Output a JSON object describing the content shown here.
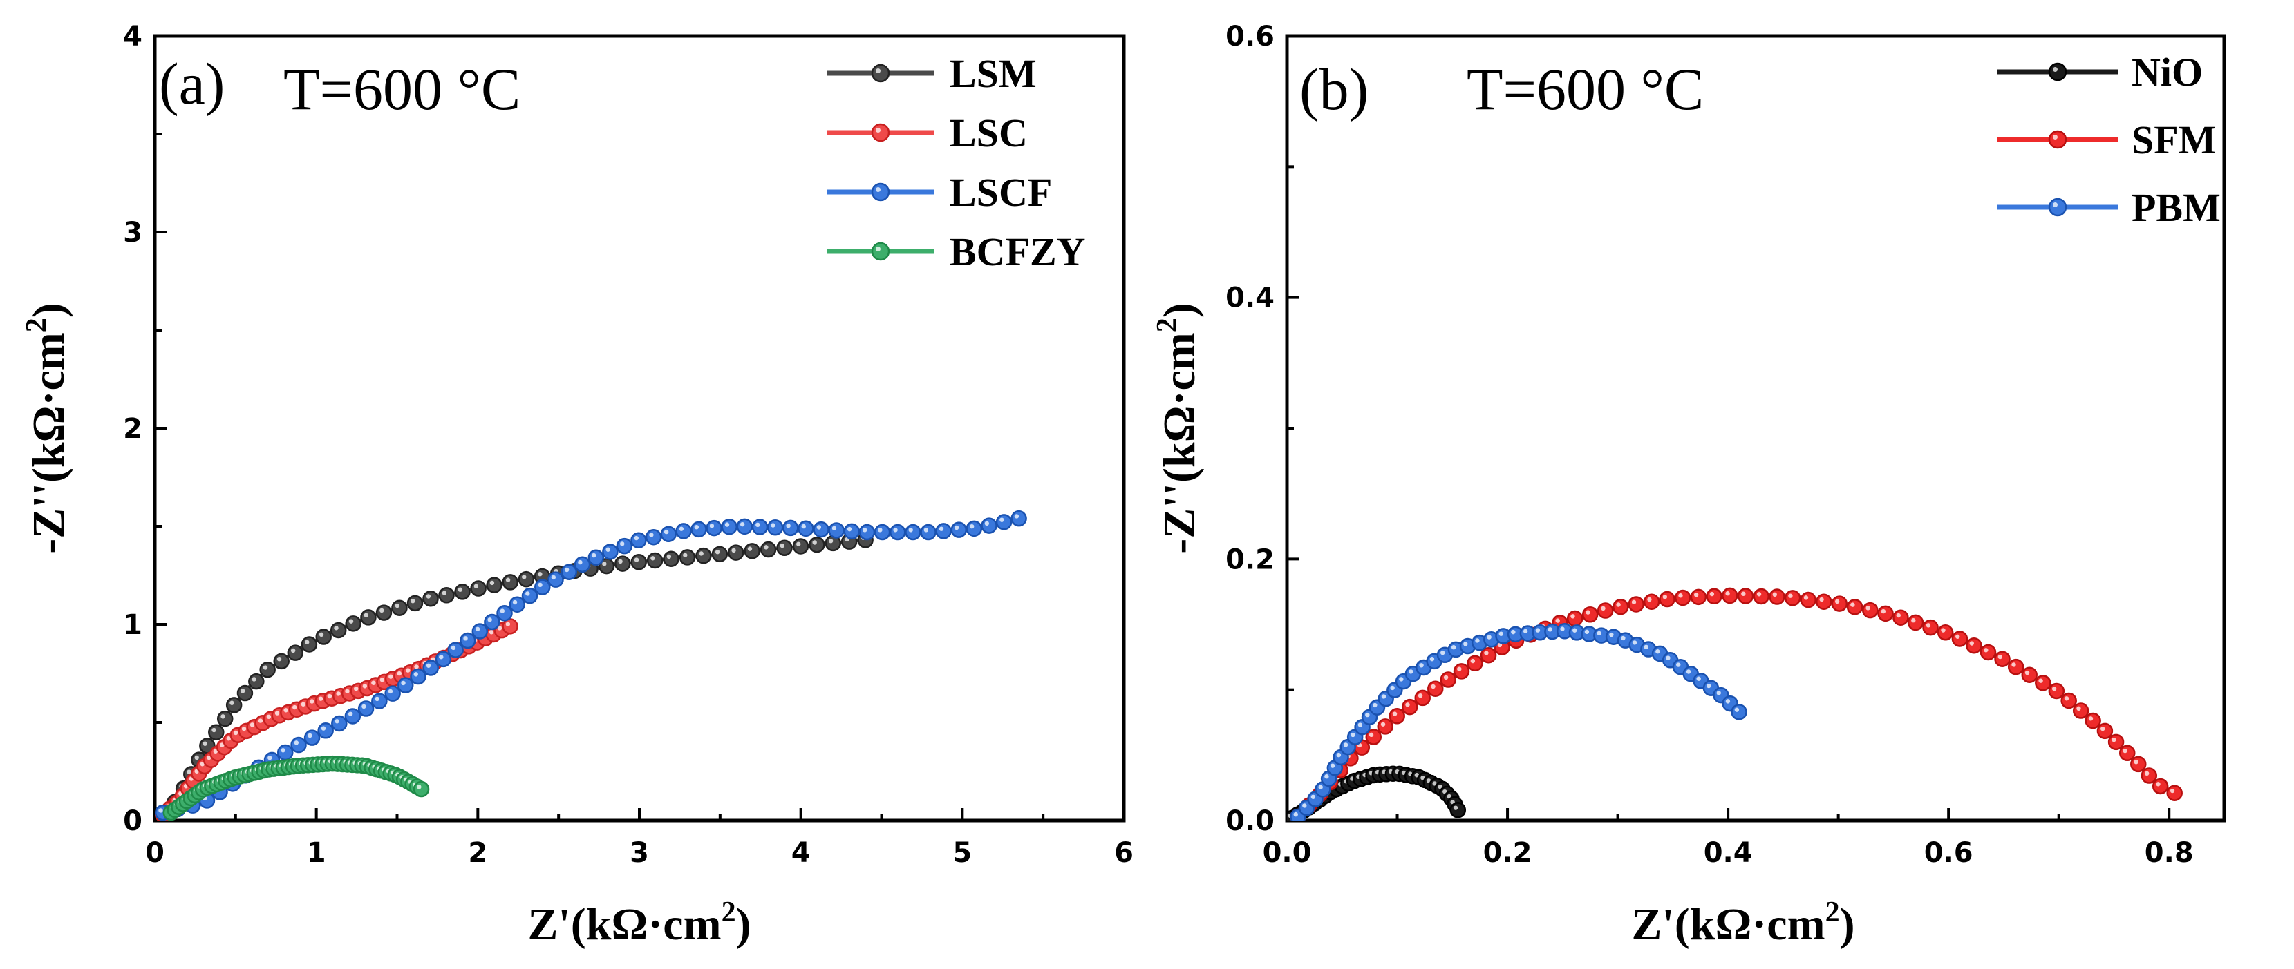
{
  "chart_data": [
    {
      "type": "line",
      "panel_label": "(a)",
      "annotation": "T=600 °C",
      "xlabel": "Z'(kΩ·cm",
      "xlabel_sup": "2",
      "xlabel_end": ")",
      "ylabel": "-Z''(kΩ·cm",
      "ylabel_sup": "2",
      "ylabel_end": ")",
      "xlim": [
        0,
        6
      ],
      "ylim": [
        0,
        4
      ],
      "xticks": [
        0,
        1,
        2,
        3,
        4,
        5,
        6
      ],
      "yticks": [
        0,
        1,
        2,
        3,
        4
      ],
      "legend_position": "top-right",
      "series": [
        {
          "name": "LSM",
          "color": "#4a4a4a",
          "edge": "#222222",
          "n": 50,
          "points": [
            [
              0.06,
              0.03
            ],
            [
              0.15,
              0.12
            ],
            [
              0.3,
              0.35
            ],
            [
              0.5,
              0.6
            ],
            [
              0.7,
              0.77
            ],
            [
              1.0,
              0.92
            ],
            [
              1.3,
              1.03
            ],
            [
              1.7,
              1.13
            ],
            [
              2.1,
              1.2
            ],
            [
              2.5,
              1.26
            ],
            [
              2.9,
              1.31
            ],
            [
              3.4,
              1.35
            ],
            [
              3.9,
              1.39
            ],
            [
              4.4,
              1.43
            ]
          ]
        },
        {
          "name": "LSC",
          "color": "#ef4a4a",
          "edge": "#c82020",
          "n": 45,
          "points": [
            [
              0.05,
              0.03
            ],
            [
              0.15,
              0.1
            ],
            [
              0.3,
              0.27
            ],
            [
              0.5,
              0.43
            ],
            [
              0.75,
              0.53
            ],
            [
              1.0,
              0.6
            ],
            [
              1.3,
              0.67
            ],
            [
              1.6,
              0.76
            ],
            [
              1.9,
              0.87
            ],
            [
              2.2,
              0.99
            ]
          ]
        },
        {
          "name": "LSCF",
          "color": "#3a78dc",
          "edge": "#1a52b0",
          "n": 62,
          "points": [
            [
              0.05,
              0.04
            ],
            [
              0.3,
              0.09
            ],
            [
              0.6,
              0.25
            ],
            [
              0.9,
              0.39
            ],
            [
              1.2,
              0.52
            ],
            [
              1.5,
              0.66
            ],
            [
              1.8,
              0.83
            ],
            [
              2.1,
              1.02
            ],
            [
              2.4,
              1.19
            ],
            [
              2.7,
              1.33
            ],
            [
              3.0,
              1.43
            ],
            [
              3.3,
              1.48
            ],
            [
              3.6,
              1.5
            ],
            [
              4.0,
              1.49
            ],
            [
              4.4,
              1.47
            ],
            [
              4.8,
              1.47
            ],
            [
              5.1,
              1.49
            ],
            [
              5.35,
              1.54
            ]
          ]
        },
        {
          "name": "BCFZY",
          "color": "#3dae6b",
          "edge": "#1f8a48",
          "n": 55,
          "points": [
            [
              0.1,
              0.04
            ],
            [
              0.3,
              0.16
            ],
            [
              0.5,
              0.22
            ],
            [
              0.7,
              0.26
            ],
            [
              0.9,
              0.28
            ],
            [
              1.1,
              0.29
            ],
            [
              1.3,
              0.28
            ],
            [
              1.5,
              0.23
            ],
            [
              1.65,
              0.16
            ]
          ]
        }
      ]
    },
    {
      "type": "line",
      "panel_label": "(b)",
      "annotation": "T=600 °C",
      "xlabel": "Z'(kΩ·cm",
      "xlabel_sup": "2",
      "xlabel_end": ")",
      "ylabel": "-Z''(kΩ·cm",
      "ylabel_sup": "2",
      "ylabel_end": ")",
      "xlim": [
        0,
        0.85
      ],
      "ylim": [
        0,
        0.6
      ],
      "xticks": [
        0.0,
        0.2,
        0.4,
        0.6,
        0.8
      ],
      "yticks": [
        0.0,
        0.2,
        0.4,
        0.6
      ],
      "legend_position": "top-right",
      "series": [
        {
          "name": "NiO",
          "color": "#1a1a1a",
          "edge": "#000000",
          "n": 30,
          "points": [
            [
              0.005,
              0.002
            ],
            [
              0.02,
              0.01
            ],
            [
              0.04,
              0.022
            ],
            [
              0.06,
              0.03
            ],
            [
              0.08,
              0.035
            ],
            [
              0.1,
              0.036
            ],
            [
              0.12,
              0.033
            ],
            [
              0.14,
              0.025
            ],
            [
              0.15,
              0.016
            ],
            [
              0.155,
              0.008
            ]
          ]
        },
        {
          "name": "SFM",
          "color": "#ee2b2b",
          "edge": "#b81010",
          "n": 65,
          "points": [
            [
              0.01,
              0.003
            ],
            [
              0.03,
              0.02
            ],
            [
              0.06,
              0.05
            ],
            [
              0.1,
              0.08
            ],
            [
              0.15,
              0.11
            ],
            [
              0.2,
              0.135
            ],
            [
              0.25,
              0.152
            ],
            [
              0.3,
              0.163
            ],
            [
              0.35,
              0.17
            ],
            [
              0.4,
              0.172
            ],
            [
              0.45,
              0.171
            ],
            [
              0.5,
              0.166
            ],
            [
              0.55,
              0.157
            ],
            [
              0.6,
              0.143
            ],
            [
              0.65,
              0.123
            ],
            [
              0.7,
              0.098
            ],
            [
              0.74,
              0.07
            ],
            [
              0.77,
              0.045
            ],
            [
              0.79,
              0.027
            ],
            [
              0.805,
              0.021
            ]
          ]
        },
        {
          "name": "PBM",
          "color": "#3a78dc",
          "edge": "#1a52b0",
          "n": 45,
          "points": [
            [
              0.01,
              0.003
            ],
            [
              0.03,
              0.02
            ],
            [
              0.05,
              0.05
            ],
            [
              0.08,
              0.085
            ],
            [
              0.11,
              0.11
            ],
            [
              0.15,
              0.13
            ],
            [
              0.2,
              0.142
            ],
            [
              0.25,
              0.145
            ],
            [
              0.3,
              0.14
            ],
            [
              0.34,
              0.127
            ],
            [
              0.37,
              0.11
            ],
            [
              0.395,
              0.095
            ],
            [
              0.41,
              0.083
            ]
          ]
        }
      ]
    }
  ]
}
